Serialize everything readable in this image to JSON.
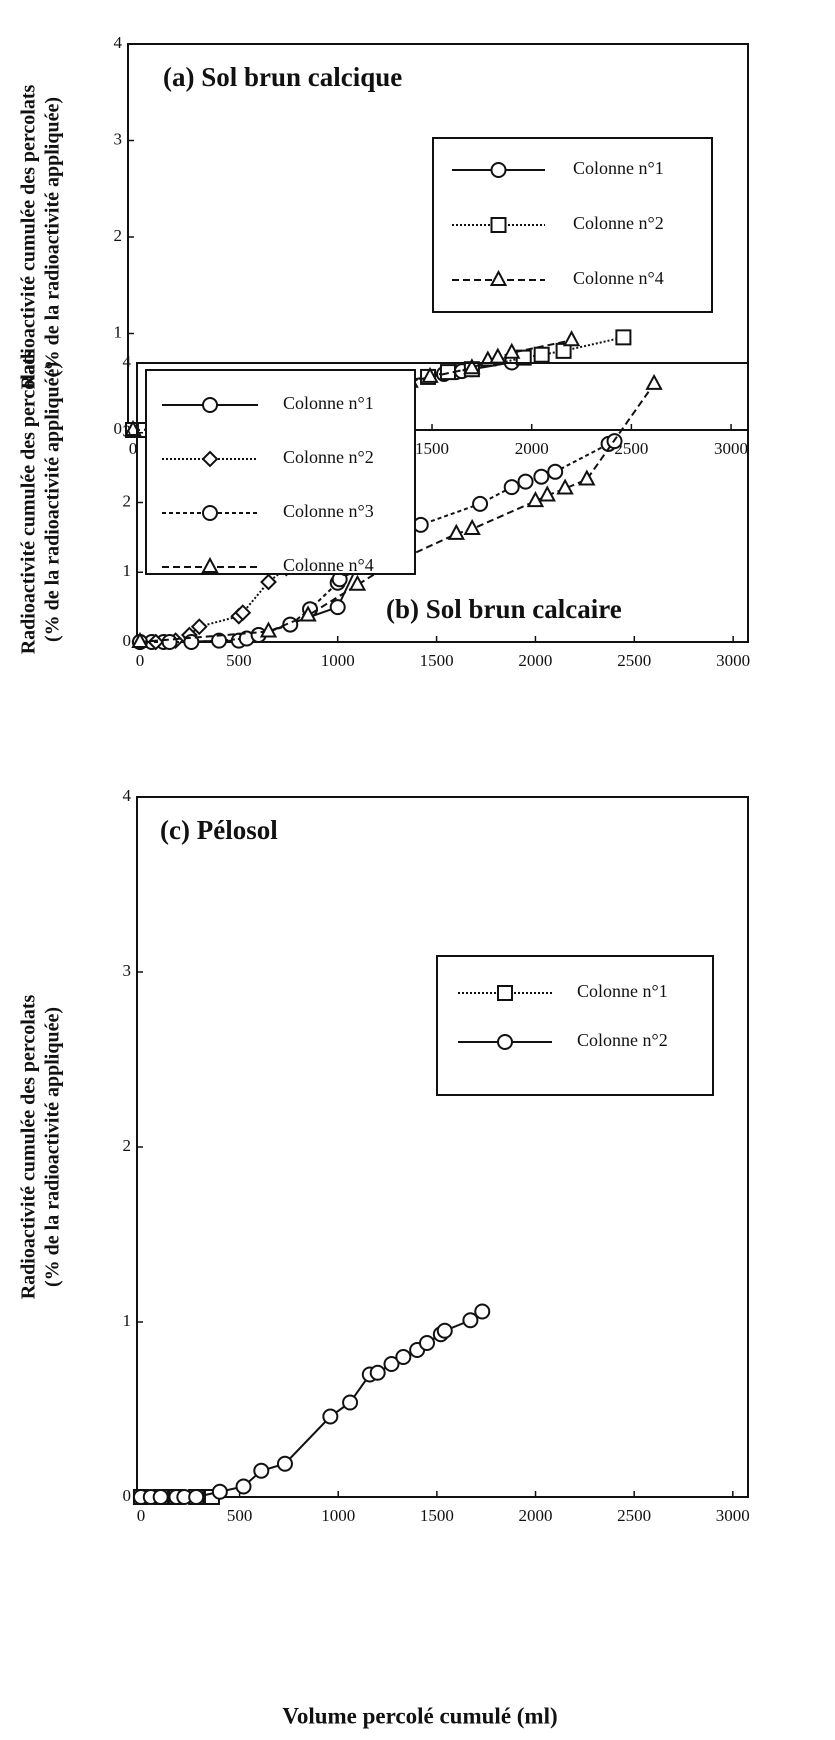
{
  "chart_data": [
    {
      "type": "line",
      "title": "(a)  Sol brun calcique",
      "y_label": [
        "Radioactivité cumulée des percolats",
        "(% de la radioactivité appliquée)"
      ],
      "xlim": [
        -25,
        3085
      ],
      "ylim": [
        0,
        4
      ],
      "xticks": [
        0,
        500,
        1000,
        1500,
        2000,
        2500,
        3000
      ],
      "yticks": [
        0,
        1,
        2,
        3,
        4
      ],
      "legend": "right",
      "series": [
        {
          "name": "Colonne n°1",
          "color": "#111",
          "marker": "circle",
          "linestyle": "solid",
          "x": [
            0,
            75,
            225,
            650,
            960,
            1220,
            1250,
            1290,
            1560,
            1620,
            1650,
            1700,
            1900
          ],
          "values": [
            0,
            0,
            0,
            0.03,
            0.27,
            0.44,
            0.47,
            0.48,
            0.58,
            0.6,
            0.61,
            0.63,
            0.7
          ]
        },
        {
          "name": "Colonne n°2",
          "color": "#111",
          "marker": "square",
          "linestyle": "dotted",
          "x": [
            0,
            60,
            180,
            410,
            540,
            660,
            730,
            1020,
            1190,
            1270,
            1480,
            1580,
            1700,
            1960,
            2050,
            2160,
            2460
          ],
          "values": [
            0,
            0,
            0,
            0,
            0.01,
            0.03,
            0.07,
            0.18,
            0.3,
            0.44,
            0.55,
            0.6,
            0.63,
            0.75,
            0.78,
            0.82,
            0.96
          ]
        },
        {
          "name": "Colonne n°4",
          "color": "#111",
          "marker": "triangle",
          "linestyle": "dashed",
          "x": [
            0,
            650,
            940,
            1090,
            1390,
            1490,
            1700,
            1780,
            1830,
            1900,
            2200
          ],
          "values": [
            0,
            0.03,
            0.08,
            0.18,
            0.5,
            0.55,
            0.64,
            0.72,
            0.75,
            0.8,
            0.93
          ]
        }
      ]
    },
    {
      "type": "line",
      "title": "(b)  Sol brun calcaire",
      "y_label": [
        "Radioactivité cumulée des percolats",
        "(% de la radioactivité appliquée)"
      ],
      "xlim": [
        -15,
        3075
      ],
      "ylim": [
        0,
        4
      ],
      "xticks": [
        0,
        500,
        1000,
        1500,
        2000,
        2500,
        3000
      ],
      "yticks": [
        0,
        1,
        2,
        3,
        4
      ],
      "legend": "upper left",
      "series": [
        {
          "name": "Colonne n°1",
          "color": "#111",
          "marker": "circle",
          "linestyle": "solid",
          "x": [
            0,
            60,
            120,
            500,
            600,
            1000,
            1100,
            1300
          ],
          "values": [
            0,
            0,
            0,
            0.02,
            0.1,
            0.5,
            1.1,
            2.03
          ]
        },
        {
          "name": "Colonne n°2",
          "color": "#111",
          "marker": "diamond",
          "linestyle": "dotted",
          "x": [
            0,
            80,
            180,
            250,
            300,
            500,
            520,
            650,
            740,
            770,
            790,
            840
          ],
          "values": [
            0,
            0,
            0.02,
            0.1,
            0.22,
            0.37,
            0.42,
            0.86,
            1.06,
            1.14,
            1.17,
            1.52
          ]
        },
        {
          "name": "Colonne n°3",
          "color": "#111",
          "marker": "circle",
          "linestyle": "shortdash",
          "x": [
            0,
            150,
            260,
            400,
            540,
            600,
            760,
            860,
            1000,
            1010,
            1040,
            1070,
            1080,
            1200,
            1300,
            1420,
            1720,
            1880,
            1950,
            2030,
            2100,
            2370,
            2400
          ],
          "values": [
            0,
            0,
            0,
            0.02,
            0.05,
            0.1,
            0.25,
            0.47,
            0.85,
            0.9,
            1.06,
            1.1,
            1.28,
            1.38,
            1.56,
            1.68,
            1.98,
            2.22,
            2.3,
            2.37,
            2.44,
            2.84,
            2.88
          ]
        },
        {
          "name": "Colonne n°4",
          "color": "#111",
          "marker": "triangle",
          "linestyle": "dashed",
          "x": [
            0,
            650,
            850,
            1100,
            1270,
            1600,
            1680,
            2000,
            2060,
            2150,
            2260,
            2600
          ],
          "values": [
            0,
            0.15,
            0.38,
            0.82,
            1.12,
            1.55,
            1.62,
            2.02,
            2.1,
            2.2,
            2.33,
            3.7
          ]
        }
      ]
    },
    {
      "type": "line",
      "title": "(c)  Pélosol",
      "y_label": [
        "Radioactivité cumulée des percolats",
        "(% de la radioactivité appliquée)"
      ],
      "x_label": "Volume percolé cumulé (ml)",
      "xlim": [
        -20,
        3077
      ],
      "ylim": [
        0,
        4
      ],
      "xticks": [
        0,
        500,
        1000,
        1500,
        2000,
        2500,
        3000
      ],
      "yticks": [
        0,
        1,
        2,
        3,
        4
      ],
      "legend": "right",
      "series": [
        {
          "name": "Colonne n°1",
          "color": "#111",
          "marker": "square",
          "linestyle": "dotted",
          "x": [
            0,
            100,
            180,
            280,
            360
          ],
          "values": [
            0,
            0,
            0,
            0,
            0
          ]
        },
        {
          "name": "Colonne n°2",
          "color": "#111",
          "marker": "circle",
          "linestyle": "solid",
          "x": [
            0,
            50,
            100,
            180,
            220,
            280,
            400,
            520,
            610,
            730,
            960,
            1060,
            1160,
            1200,
            1270,
            1330,
            1400,
            1450,
            1520,
            1540,
            1670,
            1730
          ],
          "values": [
            0,
            0,
            0,
            0,
            0,
            0,
            0.03,
            0.06,
            0.15,
            0.19,
            0.46,
            0.54,
            0.7,
            0.71,
            0.76,
            0.8,
            0.84,
            0.88,
            0.93,
            0.95,
            1.01,
            1.06
          ]
        }
      ]
    }
  ]
}
